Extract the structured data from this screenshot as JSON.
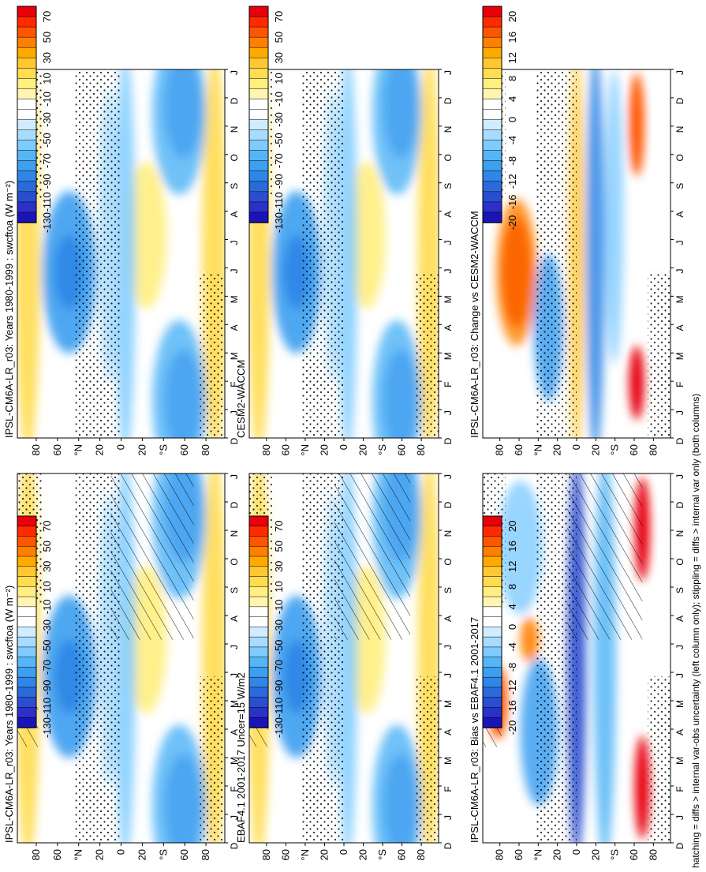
{
  "footer_note": "hatching = diffs > internal var-obs uncertainty (left column only); stippling = diffs > internal var only (both columns)",
  "month_labels": [
    "D",
    "J",
    "F",
    "M",
    "A",
    "M",
    "J",
    "J",
    "A",
    "S",
    "O",
    "N",
    "D",
    "J"
  ],
  "lat_labels": [
    "80",
    "60",
    "°N",
    "20",
    "0",
    "20",
    "°S",
    "60",
    "80"
  ],
  "panels": [
    {
      "id": "model-left",
      "title": "IPSL-CM6A-LR_r03: Years 1980-1999 : swcftoa (W m⁻²)",
      "palette": "abs",
      "hatching": true,
      "stippling": true
    },
    {
      "id": "model-right",
      "title": "IPSL-CM6A-LR_r03: Years 1980-1999 : swcftoa (W m⁻²)",
      "palette": "abs",
      "hatching": false,
      "stippling": true
    },
    {
      "id": "obs-left",
      "title": "EBAF4.1 2001-2017 Uncer=15 W/m2",
      "palette": "abs",
      "hatching": true,
      "stippling": true
    },
    {
      "id": "ref-right",
      "title": "CESM2-WACCM",
      "palette": "abs",
      "hatching": false,
      "stippling": true
    },
    {
      "id": "bias-left",
      "title": "IPSL-CM6A-LR_r03: Bias vs EBAF4.1 2001-2017",
      "palette": "diff",
      "hatching": true,
      "stippling": true
    },
    {
      "id": "change-right",
      "title": "IPSL-CM6A-LR_r03: Change vs CESM2-WACCM",
      "palette": "diff",
      "hatching": false,
      "stippling": true
    }
  ],
  "colorbars": {
    "abs": {
      "labels": [
        "70",
        "50",
        "30",
        "10",
        "-10",
        "-30",
        "-50",
        "-70",
        "-90",
        "-110",
        "-130"
      ],
      "colors": [
        "#e8000b",
        "#ff2a00",
        "#ff5500",
        "#ff8000",
        "#ffaa00",
        "#ffc832",
        "#ffdc50",
        "#ffee80",
        "#fff5b0",
        "#ffffff",
        "#ffffff",
        "#d0ecff",
        "#a8dcff",
        "#7ecbff",
        "#55b6f7",
        "#3c9ff0",
        "#2f86e6",
        "#2a6adb",
        "#2a4ed0",
        "#2a30c8",
        "#1a14b8"
      ]
    },
    "diff": {
      "labels": [
        "20",
        "16",
        "12",
        "8",
        "4",
        "0",
        "-4",
        "-8",
        "-12",
        "-16",
        "-20"
      ],
      "colors": [
        "#e8000b",
        "#ff2a00",
        "#ff5500",
        "#ff8000",
        "#ffaa00",
        "#ffc832",
        "#ffdc50",
        "#ffee80",
        "#fff5b0",
        "#ffffff",
        "#ffffff",
        "#d0ecff",
        "#a8dcff",
        "#7ecbff",
        "#55b6f7",
        "#3c9ff0",
        "#2f86e6",
        "#2a6adb",
        "#2a4ed0",
        "#2a30c8",
        "#1a14b8"
      ]
    }
  },
  "chart_data": [
    {
      "type": "heatmap",
      "title": "IPSL-CM6A-LR_r03: Years 1980-1999 : swcftoa (W m⁻²)",
      "x": [
        "D",
        "J",
        "F",
        "M",
        "A",
        "M",
        "J",
        "J",
        "A",
        "S",
        "O",
        "N",
        "D",
        "J"
      ],
      "y": [
        -80,
        -60,
        -40,
        -20,
        0,
        20,
        40,
        60,
        80
      ],
      "ylim": [
        -90,
        90
      ],
      "zrange": [
        -130,
        70
      ],
      "legend": "right"
    },
    {
      "type": "heatmap",
      "title": "EBAF4.1 2001-2017 Uncer=15 W/m2",
      "x": [
        "D",
        "J",
        "F",
        "M",
        "A",
        "M",
        "J",
        "J",
        "A",
        "S",
        "O",
        "N",
        "D",
        "J"
      ],
      "y": [
        -80,
        -60,
        -40,
        -20,
        0,
        20,
        40,
        60,
        80
      ],
      "ylim": [
        -90,
        90
      ],
      "zrange": [
        -130,
        70
      ],
      "legend": "right"
    },
    {
      "type": "heatmap",
      "title": "CESM2-WACCM",
      "x": [
        "D",
        "J",
        "F",
        "M",
        "A",
        "M",
        "J",
        "J",
        "A",
        "S",
        "O",
        "N",
        "D",
        "J"
      ],
      "y": [
        -80,
        -60,
        -40,
        -20,
        0,
        20,
        40,
        60,
        80
      ],
      "ylim": [
        -90,
        90
      ],
      "zrange": [
        -130,
        70
      ],
      "legend": "right"
    },
    {
      "type": "heatmap",
      "title": "IPSL-CM6A-LR_r03: Bias vs EBAF4.1 2001-2017",
      "x": [
        "D",
        "J",
        "F",
        "M",
        "A",
        "M",
        "J",
        "J",
        "A",
        "S",
        "O",
        "N",
        "D",
        "J"
      ],
      "y": [
        -80,
        -60,
        -40,
        -20,
        0,
        20,
        40,
        60,
        80
      ],
      "ylim": [
        -90,
        90
      ],
      "zrange": [
        -20,
        20
      ],
      "legend": "right"
    },
    {
      "type": "heatmap",
      "title": "IPSL-CM6A-LR_r03: Change vs CESM2-WACCM",
      "x": [
        "D",
        "J",
        "F",
        "M",
        "A",
        "M",
        "J",
        "J",
        "A",
        "S",
        "O",
        "N",
        "D",
        "J"
      ],
      "y": [
        -80,
        -60,
        -40,
        -20,
        0,
        20,
        40,
        60,
        80
      ],
      "ylim": [
        -90,
        90
      ],
      "zrange": [
        -20,
        20
      ],
      "legend": "right"
    }
  ]
}
